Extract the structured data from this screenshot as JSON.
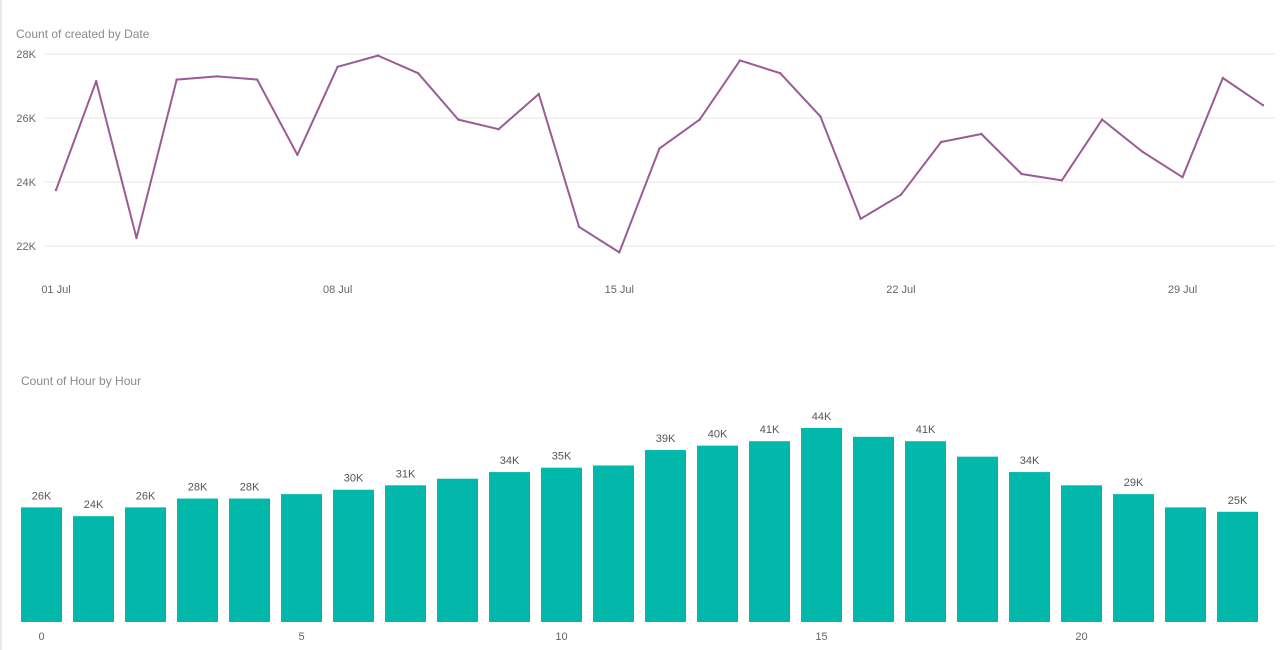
{
  "colors": {
    "line": "#9b5c95",
    "bar": "#01b8aa",
    "grid": "#e6e6e6"
  },
  "chart_data": [
    {
      "type": "line",
      "title": "Count of created by Date",
      "xlabel": "",
      "ylabel": "",
      "x": [
        "01 Jul",
        "02 Jul",
        "03 Jul",
        "04 Jul",
        "05 Jul",
        "06 Jul",
        "07 Jul",
        "08 Jul",
        "09 Jul",
        "10 Jul",
        "11 Jul",
        "12 Jul",
        "13 Jul",
        "14 Jul",
        "15 Jul",
        "16 Jul",
        "17 Jul",
        "18 Jul",
        "19 Jul",
        "20 Jul",
        "21 Jul",
        "22 Jul",
        "23 Jul",
        "24 Jul",
        "25 Jul",
        "26 Jul",
        "27 Jul",
        "28 Jul",
        "29 Jul",
        "30 Jul",
        "31 Jul"
      ],
      "values": [
        23750,
        27150,
        22250,
        27200,
        27300,
        27200,
        24850,
        27600,
        27950,
        27400,
        25950,
        25650,
        26750,
        22600,
        21800,
        25050,
        25950,
        27800,
        27400,
        26050,
        22850,
        23600,
        25250,
        25500,
        24250,
        24050,
        25950,
        24950,
        24150,
        27250,
        26400
      ],
      "x_ticks": [
        "01 Jul",
        "08 Jul",
        "15 Jul",
        "22 Jul",
        "29 Jul"
      ],
      "y_ticks": [
        22000,
        24000,
        26000,
        28000
      ],
      "y_tick_labels": [
        "22K",
        "24K",
        "26K",
        "28K"
      ],
      "ylim": [
        21800,
        28300
      ],
      "grid": true
    },
    {
      "type": "bar",
      "title": "Count of Hour by Hour",
      "xlabel": "",
      "ylabel": "",
      "categories": [
        0,
        1,
        2,
        3,
        4,
        5,
        6,
        7,
        8,
        9,
        10,
        11,
        12,
        13,
        14,
        15,
        16,
        17,
        18,
        19,
        20,
        21,
        22,
        23
      ],
      "values": [
        26000,
        24000,
        26000,
        28000,
        28000,
        29000,
        30000,
        31000,
        32500,
        34000,
        35000,
        35500,
        39000,
        40000,
        41000,
        44000,
        42000,
        41000,
        37500,
        34000,
        31000,
        29000,
        26000,
        25000
      ],
      "data_labels": [
        "26K",
        "24K",
        "26K",
        "28K",
        "28K",
        "",
        "30K",
        "31K",
        "",
        "34K",
        "35K",
        "",
        "39K",
        "40K",
        "41K",
        "44K",
        "",
        "41K",
        "",
        "34K",
        "",
        "29K",
        "",
        "25K"
      ],
      "x_ticks": [
        0,
        5,
        10,
        15,
        20
      ],
      "x_tick_labels": [
        "0",
        "5",
        "10",
        "15",
        "20"
      ],
      "ylim": [
        0,
        44000
      ],
      "grid": false
    }
  ]
}
